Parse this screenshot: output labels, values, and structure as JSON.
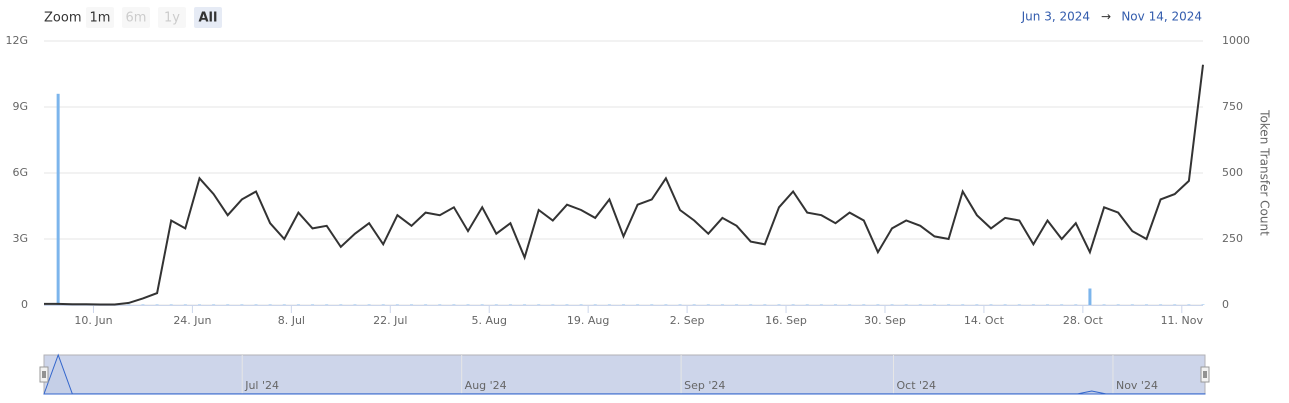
{
  "chart_data": {
    "type": "bar-line",
    "zoom_label": "Zoom",
    "zoom_buttons": [
      "1m",
      "6m",
      "1y",
      "All"
    ],
    "zoom_disabled": [
      "6m",
      "1y"
    ],
    "zoom_selected": "All",
    "range_from": "Jun 3, 2024",
    "range_arrow": "→",
    "range_to": "Nov 14, 2024",
    "y2label": "Token Transfer Count",
    "x": [
      "2024-06-03",
      "2024-06-05",
      "2024-06-07",
      "2024-06-09",
      "2024-06-11",
      "2024-06-13",
      "2024-06-15",
      "2024-06-17",
      "2024-06-19",
      "2024-06-21",
      "2024-06-23",
      "2024-06-25",
      "2024-06-27",
      "2024-06-29",
      "2024-07-01",
      "2024-07-03",
      "2024-07-05",
      "2024-07-07",
      "2024-07-09",
      "2024-07-11",
      "2024-07-13",
      "2024-07-15",
      "2024-07-17",
      "2024-07-19",
      "2024-07-21",
      "2024-07-23",
      "2024-07-25",
      "2024-07-27",
      "2024-07-29",
      "2024-07-31",
      "2024-08-02",
      "2024-08-04",
      "2024-08-06",
      "2024-08-08",
      "2024-08-10",
      "2024-08-12",
      "2024-08-14",
      "2024-08-16",
      "2024-08-18",
      "2024-08-20",
      "2024-08-22",
      "2024-08-24",
      "2024-08-26",
      "2024-08-28",
      "2024-08-30",
      "2024-09-01",
      "2024-09-03",
      "2024-09-05",
      "2024-09-07",
      "2024-09-09",
      "2024-09-11",
      "2024-09-13",
      "2024-09-15",
      "2024-09-17",
      "2024-09-19",
      "2024-09-21",
      "2024-09-23",
      "2024-09-25",
      "2024-09-27",
      "2024-09-29",
      "2024-10-01",
      "2024-10-03",
      "2024-10-05",
      "2024-10-07",
      "2024-10-09",
      "2024-10-11",
      "2024-10-13",
      "2024-10-15",
      "2024-10-17",
      "2024-10-19",
      "2024-10-21",
      "2024-10-23",
      "2024-10-25",
      "2024-10-27",
      "2024-10-29",
      "2024-10-31",
      "2024-11-02",
      "2024-11-04",
      "2024-11-06",
      "2024-11-08",
      "2024-11-10",
      "2024-11-12",
      "2024-11-14"
    ],
    "series": [
      {
        "type": "bar",
        "color": "#7cb5ec",
        "values": [
          0,
          9600000000,
          40000000,
          30000000,
          20000000,
          20000000,
          20000000,
          20000000,
          20000000,
          20000000,
          20000000,
          20000000,
          20000000,
          20000000,
          20000000,
          20000000,
          20000000,
          20000000,
          20000000,
          20000000,
          20000000,
          20000000,
          20000000,
          20000000,
          20000000,
          20000000,
          20000000,
          20000000,
          20000000,
          20000000,
          20000000,
          20000000,
          20000000,
          20000000,
          20000000,
          20000000,
          20000000,
          20000000,
          20000000,
          20000000,
          20000000,
          20000000,
          20000000,
          20000000,
          20000000,
          20000000,
          20000000,
          20000000,
          20000000,
          20000000,
          20000000,
          20000000,
          20000000,
          20000000,
          20000000,
          20000000,
          20000000,
          20000000,
          20000000,
          20000000,
          20000000,
          20000000,
          20000000,
          20000000,
          20000000,
          20000000,
          20000000,
          20000000,
          20000000,
          20000000,
          20000000,
          20000000,
          20000000,
          20000000,
          750000000,
          20000000,
          20000000,
          20000000,
          20000000,
          20000000,
          20000000,
          20000000,
          20000000
        ]
      },
      {
        "type": "line",
        "axis": "y2",
        "color": "#333333",
        "values": [
          4,
          4,
          3,
          3,
          2,
          2,
          8,
          25,
          45,
          320,
          290,
          480,
          420,
          340,
          400,
          430,
          310,
          250,
          350,
          290,
          300,
          220,
          270,
          310,
          230,
          340,
          300,
          350,
          340,
          370,
          280,
          370,
          270,
          310,
          180,
          360,
          320,
          380,
          360,
          330,
          400,
          260,
          380,
          400,
          480,
          360,
          320,
          270,
          330,
          300,
          240,
          230,
          370,
          430,
          350,
          340,
          310,
          350,
          320,
          200,
          290,
          320,
          300,
          260,
          250,
          430,
          340,
          290,
          330,
          320,
          230,
          320,
          250,
          310,
          200,
          370,
          350,
          280,
          250,
          400,
          420,
          470,
          910
        ]
      }
    ],
    "xlim": [
      "2024-06-03",
      "2024-11-14"
    ],
    "xticks": [
      {
        "value": "2024-06-10",
        "label": "10. Jun"
      },
      {
        "value": "2024-06-24",
        "label": "24. Jun"
      },
      {
        "value": "2024-07-08",
        "label": "8. Jul"
      },
      {
        "value": "2024-07-22",
        "label": "22. Jul"
      },
      {
        "value": "2024-08-05",
        "label": "5. Aug"
      },
      {
        "value": "2024-08-19",
        "label": "19. Aug"
      },
      {
        "value": "2024-09-02",
        "label": "2. Sep"
      },
      {
        "value": "2024-09-16",
        "label": "16. Sep"
      },
      {
        "value": "2024-09-30",
        "label": "30. Sep"
      },
      {
        "value": "2024-10-14",
        "label": "14. Oct"
      },
      {
        "value": "2024-10-28",
        "label": "28. Oct"
      },
      {
        "value": "2024-11-11",
        "label": "11. Nov"
      }
    ],
    "ylim": [
      0,
      12000000000
    ],
    "yticks": [
      0,
      {
        "value": 3000000000,
        "label": "3G"
      },
      {
        "value": 6000000000,
        "label": "6G"
      },
      {
        "value": 9000000000,
        "label": "9G"
      },
      {
        "value": 12000000000,
        "label": "12G"
      }
    ],
    "y2lim": [
      0,
      1000
    ],
    "y2ticks": [
      0,
      250,
      500,
      750,
      1000
    ],
    "navigator_ticks": [
      {
        "value": "2024-07-01",
        "label": "Jul '24"
      },
      {
        "value": "2024-08-01",
        "label": "Aug '24"
      },
      {
        "value": "2024-09-01",
        "label": "Sep '24"
      },
      {
        "value": "2024-10-01",
        "label": "Oct '24"
      },
      {
        "value": "2024-11-01",
        "label": "Nov '24"
      }
    ],
    "grid": true
  }
}
